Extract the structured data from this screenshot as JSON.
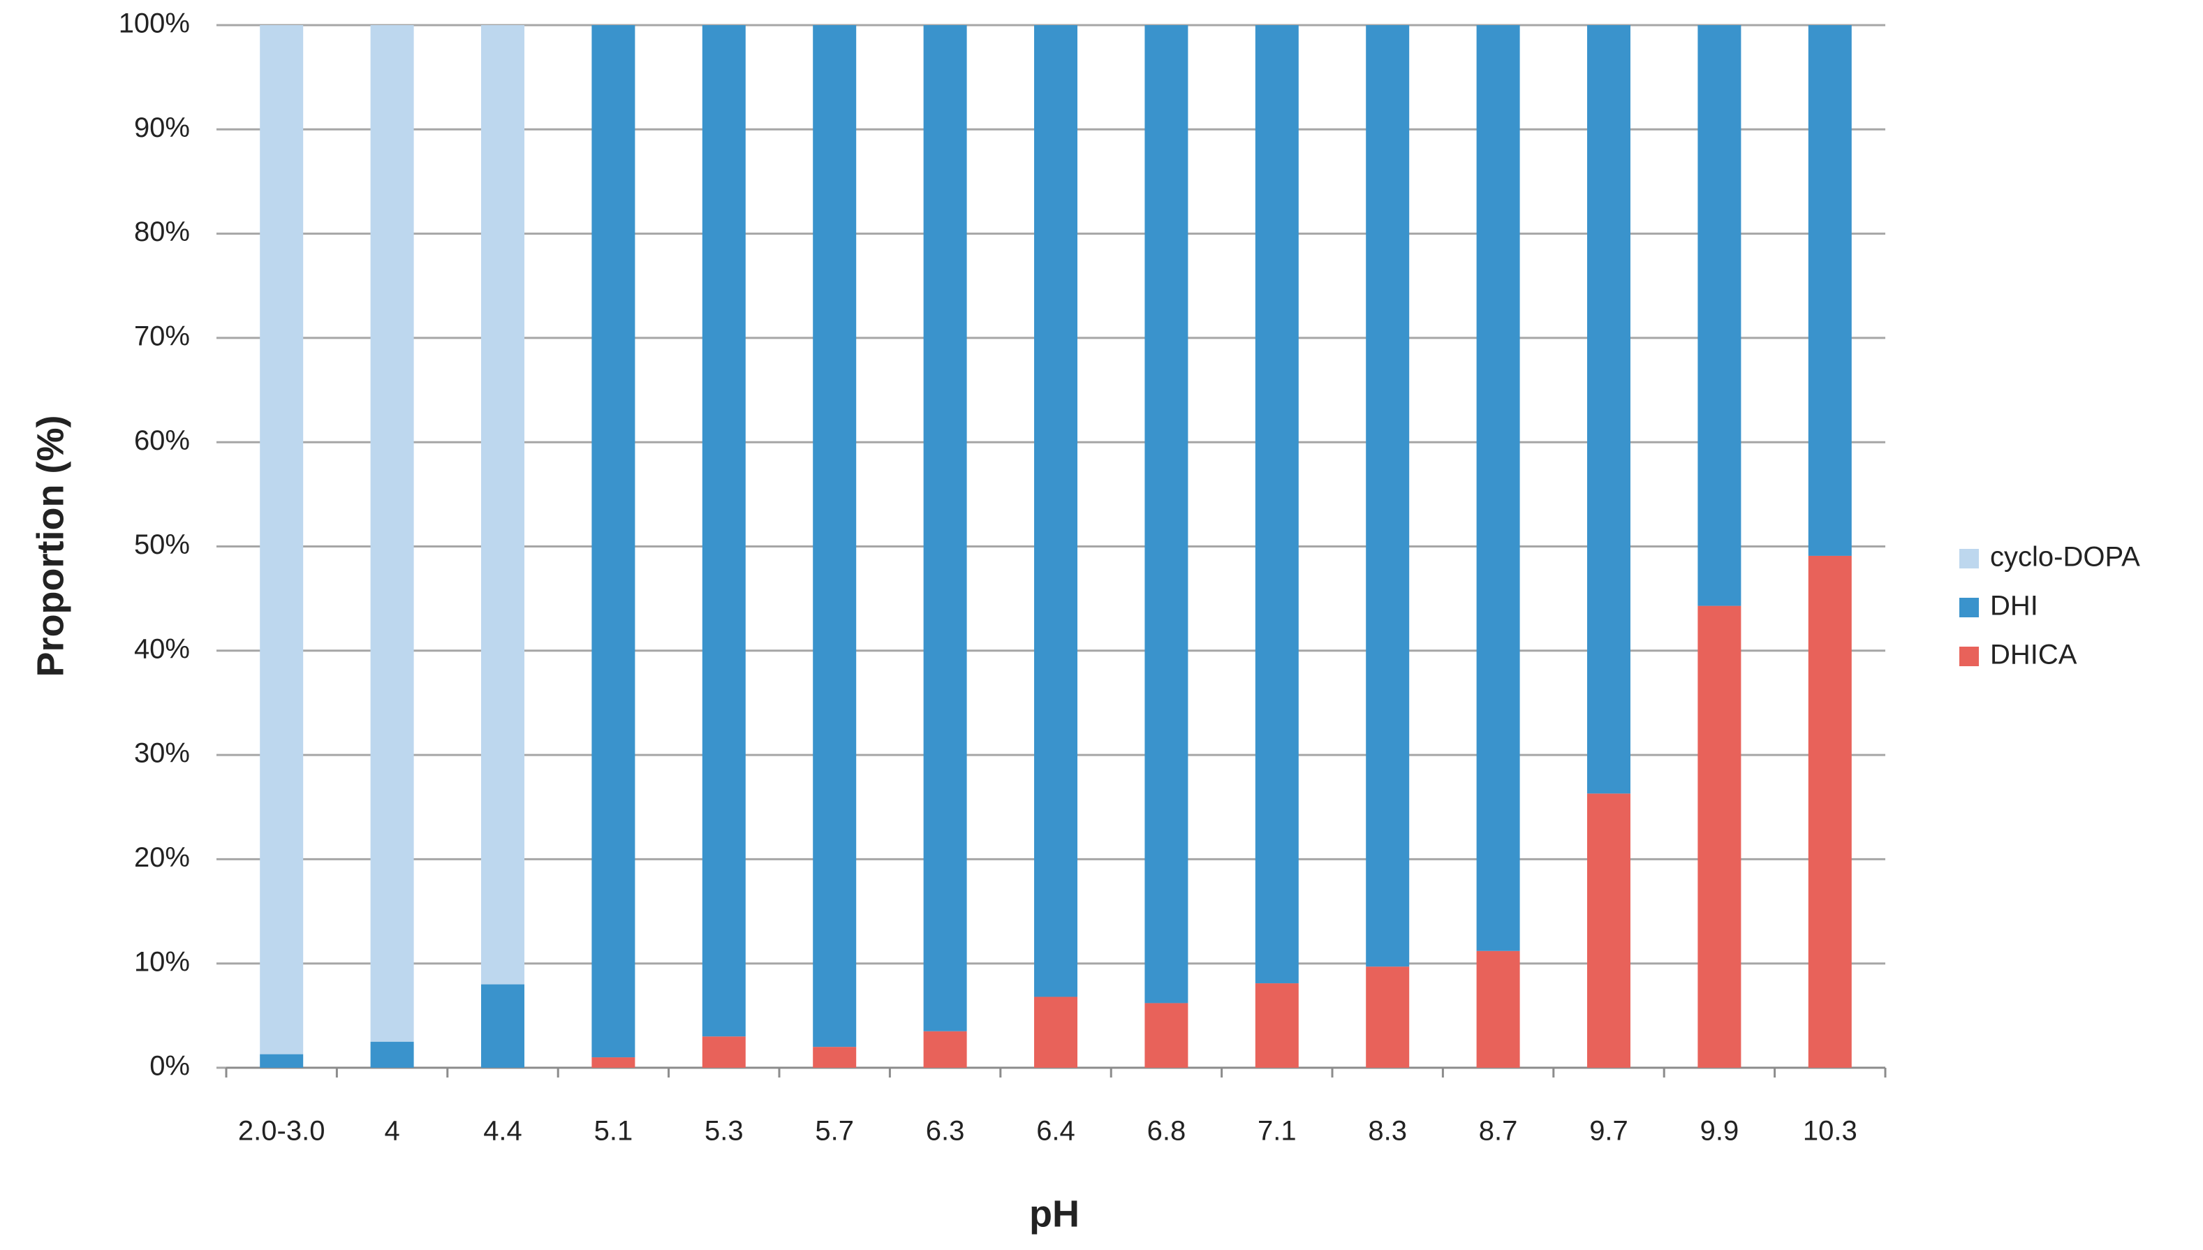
{
  "chart_data": {
    "type": "stacked_bar",
    "x_label": "pH",
    "y_label": "Proportion (%)",
    "categories": [
      "2.0-3.0",
      "4",
      "4.4",
      "5.1",
      "5.3",
      "5.7",
      "6.3",
      "6.4",
      "6.8",
      "7.1",
      "8.3",
      "8.7",
      "9.7",
      "9.9",
      "10.3"
    ],
    "series": [
      {
        "name": "cyclo-DOPA",
        "color": "#bdd7ee",
        "values": [
          98.7,
          97.5,
          92,
          0,
          0,
          0,
          0,
          0,
          0,
          0,
          0,
          0,
          0,
          0,
          0
        ]
      },
      {
        "name": "DHI",
        "color": "#3a93cc",
        "values": [
          1.3,
          2.5,
          8,
          99,
          97,
          98,
          96.5,
          93.2,
          93.8,
          91.9,
          90.3,
          88.8,
          73.7,
          55.7,
          50.9
        ]
      },
      {
        "name": "DHICA",
        "color": "#e8625a",
        "values": [
          0,
          0,
          0,
          1,
          3,
          2,
          3.5,
          6.8,
          6.2,
          8.1,
          9.7,
          11.2,
          26.3,
          44.3,
          49.1
        ]
      }
    ],
    "ylim": [
      0,
      100
    ],
    "yticks": [
      {
        "value": 0,
        "label": "0%"
      },
      {
        "value": 10,
        "label": "10%"
      },
      {
        "value": 20,
        "label": "20%"
      },
      {
        "value": 30,
        "label": "30%"
      },
      {
        "value": 40,
        "label": "40%"
      },
      {
        "value": 50,
        "label": "50%"
      },
      {
        "value": 60,
        "label": "60%"
      },
      {
        "value": 70,
        "label": "70%"
      },
      {
        "value": 80,
        "label": "80%"
      },
      {
        "value": 90,
        "label": "90%"
      },
      {
        "value": 100,
        "label": "100%"
      }
    ],
    "grid": true,
    "legend": "right"
  }
}
